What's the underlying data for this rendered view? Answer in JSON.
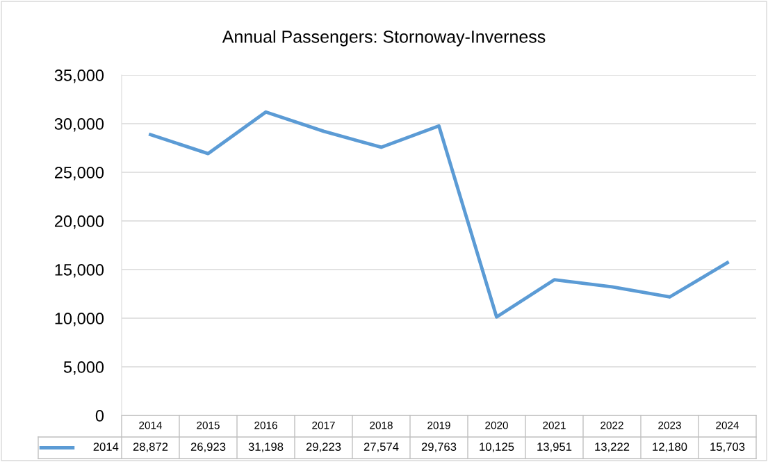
{
  "chart_data": {
    "type": "line",
    "title": "Annual Passengers: Stornoway-Inverness",
    "categories": [
      "2014",
      "2015",
      "2016",
      "2017",
      "2018",
      "2019",
      "2020",
      "2021",
      "2022",
      "2023",
      "2024"
    ],
    "series": [
      {
        "name": "2014",
        "color": "#5b9bd5",
        "values": [
          28872,
          26923,
          31198,
          29223,
          27574,
          29763,
          10125,
          13951,
          13222,
          12180,
          15703
        ],
        "value_labels": [
          "28,872",
          "26,923",
          "31,198",
          "29,223",
          "27,574",
          "29,763",
          "10,125",
          "13,951",
          "13,222",
          "12,180",
          "15,703"
        ]
      }
    ],
    "ylim": [
      0,
      35000
    ],
    "yticks": [
      {
        "value": 0,
        "label": "0"
      },
      {
        "value": 5000,
        "label": "5,000"
      },
      {
        "value": 10000,
        "label": "10,000"
      },
      {
        "value": 15000,
        "label": "15,000"
      },
      {
        "value": 20000,
        "label": "20,000"
      },
      {
        "value": 25000,
        "label": "25,000"
      },
      {
        "value": 30000,
        "label": "30,000"
      },
      {
        "value": 35000,
        "label": "35,000"
      }
    ],
    "grid": "y",
    "marker": "none",
    "line_style": "solid"
  }
}
